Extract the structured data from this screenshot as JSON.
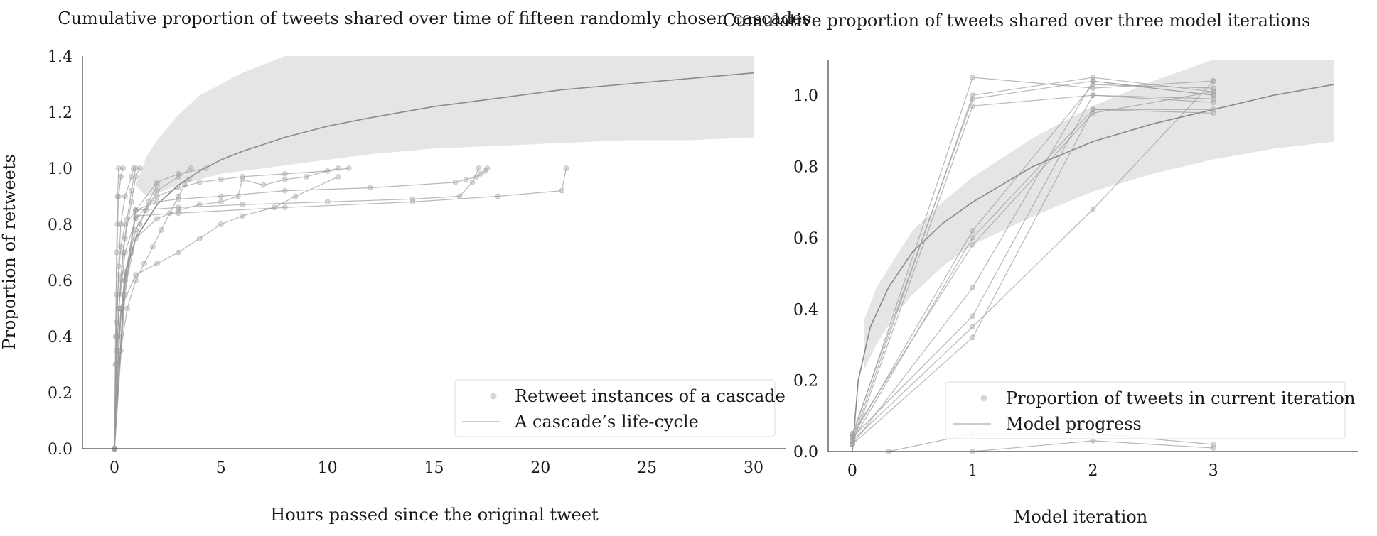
{
  "chart_data": [
    {
      "type": "line",
      "title": "Cumulative proportion of tweets shared over time of fifteen randomly chosen cascades",
      "xlabel": "Hours passed since the original tweet",
      "ylabel": "Proportion of retweets",
      "xlim": [
        -1.5,
        31.5
      ],
      "ylim": [
        0,
        1.4
      ],
      "xticks": [
        "0",
        "5",
        "10",
        "15",
        "20",
        "25",
        "30"
      ],
      "xtick_values": [
        0,
        5,
        10,
        15,
        20,
        25,
        30
      ],
      "yticks": [
        "0.0",
        "0.2",
        "0.4",
        "0.6",
        "0.8",
        "1.0",
        "1.2",
        "1.4"
      ],
      "ytick_values": [
        0,
        0.2,
        0.4,
        0.6,
        0.8,
        1.0,
        1.2,
        1.4
      ],
      "grid": false,
      "legend_position": "lower-right",
      "legend": [
        {
          "label": "Retweet instances of a cascade",
          "kind": "marker"
        },
        {
          "label": "A cascade’s life-cycle",
          "kind": "line"
        }
      ],
      "model_curve": {
        "x": [
          0,
          0.5,
          1,
          2,
          3,
          4,
          5,
          6,
          8,
          10,
          12,
          15,
          18,
          21,
          24,
          27,
          30
        ],
        "y": [
          0.0,
          0.62,
          0.75,
          0.87,
          0.94,
          0.99,
          1.03,
          1.06,
          1.11,
          1.15,
          1.18,
          1.22,
          1.25,
          1.28,
          1.3,
          1.32,
          1.34
        ]
      },
      "band": {
        "x": [
          1,
          1.5,
          2,
          3,
          4,
          5,
          6,
          8,
          10,
          12,
          15,
          18,
          21,
          24,
          27,
          30
        ],
        "upper": [
          0.94,
          1.04,
          1.1,
          1.19,
          1.26,
          1.3,
          1.34,
          1.4,
          1.4,
          1.4,
          1.4,
          1.4,
          1.4,
          1.4,
          1.4,
          1.4
        ],
        "lower": [
          0.94,
          0.9,
          0.91,
          0.94,
          0.96,
          0.98,
          0.99,
          1.01,
          1.03,
          1.05,
          1.07,
          1.08,
          1.09,
          1.1,
          1.1,
          1.11
        ]
      },
      "series": [
        {
          "x": [
            0,
            0.05,
            0.1,
            0.15,
            0.2,
            0.3,
            0.4
          ],
          "y": [
            0,
            0.3,
            0.55,
            0.8,
            0.9,
            0.97,
            1.0
          ]
        },
        {
          "x": [
            0,
            0.1,
            0.2,
            0.3,
            0.5,
            0.8,
            0.9
          ],
          "y": [
            0,
            0.4,
            0.65,
            0.8,
            0.9,
            0.97,
            1.0
          ]
        },
        {
          "x": [
            0,
            0.1,
            0.3,
            0.5,
            0.8,
            1.0,
            1.2
          ],
          "y": [
            0,
            0.35,
            0.6,
            0.75,
            0.88,
            0.97,
            1.0
          ]
        },
        {
          "x": [
            0,
            0.2,
            0.5,
            1.0,
            1.5,
            2.0,
            3.0,
            3.6
          ],
          "y": [
            0,
            0.4,
            0.63,
            0.78,
            0.85,
            0.92,
            0.97,
            1.0
          ]
        },
        {
          "x": [
            0,
            0.3,
            0.6,
            1.0,
            1.4,
            1.8,
            2.2,
            2.6,
            3.0,
            3.3,
            3.5
          ],
          "y": [
            0,
            0.35,
            0.5,
            0.6,
            0.66,
            0.72,
            0.78,
            0.84,
            0.9,
            0.94,
            0.96
          ]
        },
        {
          "x": [
            0,
            0.1,
            0.2,
            0.3,
            0.5,
            1.0,
            2.0,
            3.0,
            4.3
          ],
          "y": [
            0,
            0.45,
            0.62,
            0.72,
            0.8,
            0.85,
            0.95,
            0.98,
            1.0
          ]
        },
        {
          "x": [
            0,
            0.2,
            0.5,
            1.0,
            2.0,
            3.0,
            4.0,
            5.0,
            6.0,
            8.0,
            10.0,
            11.0
          ],
          "y": [
            0,
            0.5,
            0.7,
            0.82,
            0.9,
            0.93,
            0.95,
            0.96,
            0.97,
            0.98,
            0.99,
            1.0
          ]
        },
        {
          "x": [
            0,
            0.3,
            1.0,
            2.0,
            3.0,
            4.0,
            5.0,
            5.8,
            6.0,
            7.0,
            8.0,
            9.0,
            10.5
          ],
          "y": [
            0,
            0.5,
            0.75,
            0.82,
            0.85,
            0.87,
            0.88,
            0.9,
            0.96,
            0.94,
            0.96,
            0.97,
            1.0
          ]
        },
        {
          "x": [
            0,
            0.3,
            1.0,
            2.0,
            3.0,
            4.0,
            5.0,
            6.0,
            7.5,
            8.5,
            10.5
          ],
          "y": [
            0,
            0.5,
            0.62,
            0.66,
            0.7,
            0.75,
            0.8,
            0.83,
            0.86,
            0.9,
            0.97
          ]
        },
        {
          "x": [
            0,
            0.5,
            1.0,
            2.0,
            3.0,
            5.0,
            8.0,
            12.0,
            16.0,
            16.5,
            17.0,
            17.2,
            17.4,
            17.5
          ],
          "y": [
            0,
            0.6,
            0.85,
            0.88,
            0.89,
            0.9,
            0.92,
            0.93,
            0.95,
            0.96,
            0.97,
            0.98,
            0.99,
            1.0
          ]
        },
        {
          "x": [
            0,
            0.5,
            1.0,
            3.0,
            6.0,
            10.0,
            14.0,
            16.2,
            16.8,
            17.1
          ],
          "y": [
            0,
            0.55,
            0.85,
            0.86,
            0.87,
            0.88,
            0.89,
            0.9,
            0.95,
            1.0
          ]
        },
        {
          "x": [
            0,
            0.5,
            1.0,
            3.0,
            8.0,
            14.0,
            18.0,
            21.0,
            21.2
          ],
          "y": [
            0,
            0.6,
            0.83,
            0.84,
            0.86,
            0.88,
            0.9,
            0.92,
            1.0
          ]
        },
        {
          "x": [
            0,
            0.05,
            0.1,
            0.15,
            0.2
          ],
          "y": [
            0,
            0.4,
            0.7,
            0.9,
            1.0
          ]
        },
        {
          "x": [
            0,
            0.1,
            0.2,
            0.4,
            0.6,
            0.8,
            1.0
          ],
          "y": [
            0,
            0.3,
            0.5,
            0.7,
            0.82,
            0.92,
            1.0
          ]
        },
        {
          "x": [
            0,
            0.2,
            0.4,
            0.8,
            1.2,
            1.6,
            2.0
          ],
          "y": [
            0,
            0.35,
            0.55,
            0.7,
            0.8,
            0.88,
            0.94
          ]
        }
      ]
    },
    {
      "type": "line",
      "title": "Cumulative proportion of tweets shared over three model iterations",
      "xlabel": "Model iteration",
      "ylabel": "",
      "xlim": [
        -0.2,
        4.2
      ],
      "ylim": [
        0,
        1.1
      ],
      "xticks": [
        "0",
        "1",
        "2",
        "3"
      ],
      "xtick_values": [
        0,
        1,
        2,
        3
      ],
      "yticks": [
        "0.0",
        "0.2",
        "0.4",
        "0.6",
        "0.8",
        "1.0"
      ],
      "ytick_values": [
        0,
        0.2,
        0.4,
        0.6,
        0.8,
        1.0
      ],
      "grid": false,
      "legend_position": "lower-right",
      "legend": [
        {
          "label": "Proportion of tweets in current iteration",
          "kind": "marker"
        },
        {
          "label": "Model progress",
          "kind": "line"
        }
      ],
      "model_curve": {
        "x": [
          0,
          0.05,
          0.15,
          0.3,
          0.5,
          0.75,
          1.0,
          1.5,
          2.0,
          2.5,
          3.0,
          3.5,
          4.0
        ],
        "y": [
          0.0,
          0.2,
          0.35,
          0.46,
          0.56,
          0.64,
          0.7,
          0.8,
          0.87,
          0.92,
          0.96,
          1.0,
          1.03
        ]
      },
      "band": {
        "x": [
          0.1,
          0.2,
          0.35,
          0.5,
          0.75,
          1.0,
          1.5,
          2.0,
          2.5,
          3.0,
          3.5,
          4.0
        ],
        "upper": [
          0.37,
          0.46,
          0.54,
          0.62,
          0.7,
          0.77,
          0.88,
          0.97,
          1.04,
          1.1,
          1.1,
          1.1
        ],
        "lower": [
          0.23,
          0.3,
          0.38,
          0.44,
          0.52,
          0.58,
          0.66,
          0.73,
          0.78,
          0.82,
          0.85,
          0.87
        ]
      },
      "series": [
        {
          "x": [
            0,
            1,
            2,
            3
          ],
          "y": [
            0.04,
            1.05,
            1.02,
            1.04
          ]
        },
        {
          "x": [
            0,
            1,
            2,
            3
          ],
          "y": [
            0.03,
            1.0,
            1.05,
            1.01
          ]
        },
        {
          "x": [
            0,
            1,
            2,
            3
          ],
          "y": [
            0.05,
            0.99,
            1.04,
            1.0
          ]
        },
        {
          "x": [
            0,
            1,
            2,
            3
          ],
          "y": [
            0.02,
            0.97,
            1.0,
            0.98
          ]
        },
        {
          "x": [
            0,
            1,
            2,
            3
          ],
          "y": [
            0.04,
            0.62,
            1.03,
            1.02
          ]
        },
        {
          "x": [
            0,
            1,
            2,
            3
          ],
          "y": [
            0.03,
            0.6,
            0.96,
            0.96
          ]
        },
        {
          "x": [
            0,
            1,
            2,
            3
          ],
          "y": [
            0.05,
            0.58,
            0.95,
            1.01
          ]
        },
        {
          "x": [
            0,
            1,
            2,
            3
          ],
          "y": [
            0.02,
            0.46,
            1.04,
            1.0
          ]
        },
        {
          "x": [
            0,
            1,
            2,
            3
          ],
          "y": [
            0.04,
            0.38,
            1.0,
            0.99
          ]
        },
        {
          "x": [
            0,
            1,
            2,
            3
          ],
          "y": [
            0.03,
            0.35,
            0.68,
            1.04
          ]
        },
        {
          "x": [
            0,
            1,
            2,
            3
          ],
          "y": [
            0.02,
            0.32,
            0.96,
            0.95
          ]
        },
        {
          "x": [
            0.3,
            1,
            2,
            3
          ],
          "y": [
            0.0,
            0.05,
            0.05,
            0.02
          ]
        },
        {
          "x": [
            1.0,
            2,
            3
          ],
          "y": [
            0.0,
            0.03,
            0.01
          ]
        }
      ]
    }
  ]
}
